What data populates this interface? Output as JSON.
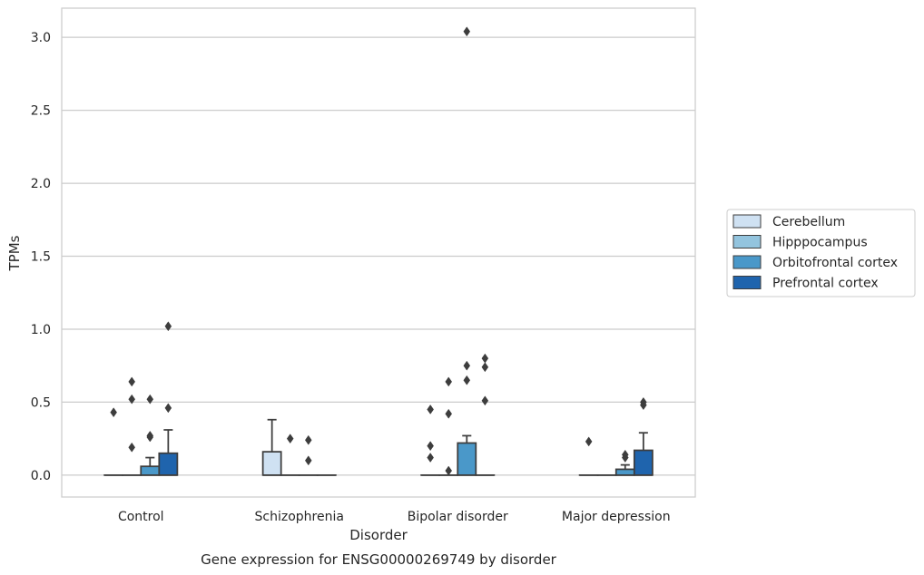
{
  "caption": "Gene expression for ENSG00000269749 by disorder",
  "chart_data": {
    "type": "box",
    "title": "",
    "xlabel": "Disorder",
    "ylabel": "TPMs",
    "ylim": [
      -0.15,
      3.2
    ],
    "yticks": [
      0.0,
      0.5,
      1.0,
      1.5,
      2.0,
      2.5,
      3.0
    ],
    "ytick_labels": [
      "0.0",
      "0.5",
      "1.0",
      "1.5",
      "2.0",
      "2.5",
      "3.0"
    ],
    "categories": [
      "Control",
      "Schizophrenia",
      "Bipolar disorder",
      "Major depression"
    ],
    "grid": "horizontal",
    "legend_position": "right",
    "series": [
      {
        "name": "Cerebellum",
        "color": "#cfe1f2",
        "boxes": [
          {
            "q1": 0,
            "median": 0,
            "q3": 0,
            "whislo": 0,
            "whishi": 0,
            "fliers": [
              0.43
            ]
          },
          {
            "q1": 0,
            "median": 0,
            "q3": 0.16,
            "whislo": 0,
            "whishi": 0.38,
            "fliers": []
          },
          {
            "q1": 0,
            "median": 0,
            "q3": 0,
            "whislo": 0,
            "whishi": 0,
            "fliers": [
              0.45,
              0.2,
              0.12
            ]
          },
          {
            "q1": 0,
            "median": 0,
            "q3": 0,
            "whislo": 0,
            "whishi": 0,
            "fliers": [
              0.23
            ]
          }
        ]
      },
      {
        "name": "Hipppocampus",
        "color": "#93c4de",
        "boxes": [
          {
            "q1": 0,
            "median": 0,
            "q3": 0,
            "whislo": 0,
            "whishi": 0,
            "fliers": [
              0.64,
              0.52,
              0.19
            ]
          },
          {
            "q1": 0,
            "median": 0,
            "q3": 0,
            "whislo": 0,
            "whishi": 0,
            "fliers": [
              0.25
            ]
          },
          {
            "q1": 0,
            "median": 0,
            "q3": 0,
            "whislo": 0,
            "whishi": 0,
            "fliers": [
              0.64,
              0.42,
              0.03
            ]
          },
          {
            "q1": 0,
            "median": 0,
            "q3": 0,
            "whislo": 0,
            "whishi": 0,
            "fliers": []
          }
        ]
      },
      {
        "name": "Orbitofrontal cortex",
        "color": "#4a98c9",
        "boxes": [
          {
            "q1": 0,
            "median": 0,
            "q3": 0.06,
            "whislo": 0,
            "whishi": 0.12,
            "fliers": [
              0.52,
              0.27,
              0.26
            ]
          },
          {
            "q1": 0,
            "median": 0,
            "q3": 0,
            "whislo": 0,
            "whishi": 0,
            "fliers": [
              0.24,
              0.1
            ]
          },
          {
            "q1": 0,
            "median": 0,
            "q3": 0.22,
            "whislo": 0,
            "whishi": 0.27,
            "fliers": [
              3.04,
              0.75,
              0.65
            ]
          },
          {
            "q1": 0,
            "median": 0,
            "q3": 0.04,
            "whislo": 0,
            "whishi": 0.07,
            "fliers": [
              0.14,
              0.12
            ]
          }
        ]
      },
      {
        "name": "Prefrontal cortex",
        "color": "#1f64ad",
        "boxes": [
          {
            "q1": 0,
            "median": 0,
            "q3": 0.15,
            "whislo": 0,
            "whishi": 0.31,
            "fliers": [
              1.02,
              0.46
            ]
          },
          {
            "q1": 0,
            "median": 0,
            "q3": 0,
            "whislo": 0,
            "whishi": 0,
            "fliers": []
          },
          {
            "q1": 0,
            "median": 0,
            "q3": 0,
            "whislo": 0,
            "whishi": 0,
            "fliers": [
              0.8,
              0.74,
              0.51
            ]
          },
          {
            "q1": 0,
            "median": 0,
            "q3": 0.17,
            "whislo": 0,
            "whishi": 0.29,
            "fliers": [
              0.5,
              0.48
            ]
          }
        ]
      }
    ]
  }
}
